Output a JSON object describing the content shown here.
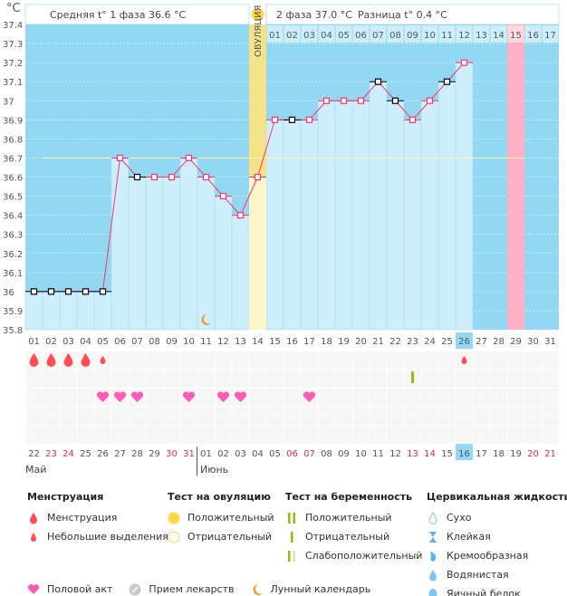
{
  "header": {
    "unit": "°C",
    "phase1": "Средняя t° 1 фаза 36.6 °C",
    "phase2": "2 фаза 37.0 °C",
    "difference": "Разница t° 0.4 °C",
    "ovulation_label": "ОВУЛЯЦИЯ"
  },
  "chart_data": {
    "type": "bar",
    "ylabel": "°C",
    "ylim": [
      35.8,
      37.4
    ],
    "yticks": [
      "37.4",
      "37.3",
      "37.2",
      "37.1",
      "37",
      "36.9",
      "36.8",
      "36.7",
      "36.6",
      "36.5",
      "36.4",
      "36.3",
      "36.2",
      "36.1",
      "36",
      "35.9",
      "35.8"
    ],
    "cover_line": 36.7,
    "cycle_days": [
      "01",
      "02",
      "03",
      "04",
      "05",
      "06",
      "07",
      "08",
      "09",
      "10",
      "11",
      "12",
      "13",
      "14",
      "15",
      "16",
      "17",
      "18",
      "19",
      "20",
      "21",
      "22",
      "23",
      "24",
      "25",
      "26",
      "27",
      "28",
      "29",
      "30",
      "31"
    ],
    "temperatures": [
      36.0,
      36.0,
      36.0,
      36.0,
      36.0,
      36.7,
      36.6,
      36.6,
      36.6,
      36.7,
      36.6,
      36.5,
      36.4,
      36.6,
      36.9,
      36.9,
      36.9,
      37.0,
      37.0,
      37.0,
      37.1,
      37.0,
      36.9,
      37.0,
      37.1,
      37.2
    ],
    "excluded_points": [
      1,
      2,
      3,
      4,
      5,
      7,
      16,
      21,
      22,
      25
    ],
    "ovulation_day": 14,
    "expected_period_day": 29,
    "today_day": 26,
    "phase2_days": [
      "01",
      "02",
      "03",
      "04",
      "05",
      "06",
      "07",
      "08",
      "09",
      "10",
      "11",
      "12",
      "13",
      "14",
      "15",
      "16",
      "17"
    ],
    "colors": {
      "bg": "#93d8f2",
      "bar": "#cdeefb",
      "line": "#ff3366",
      "ovulation": "#f5e38a",
      "period": "#ffb0c4",
      "cover": "#fff7a8"
    }
  },
  "calendar": {
    "dates": [
      "22",
      "23",
      "24",
      "25",
      "26",
      "27",
      "28",
      "29",
      "30",
      "31",
      "01",
      "02",
      "03",
      "04",
      "05",
      "06",
      "07",
      "08",
      "09",
      "10",
      "11",
      "12",
      "13",
      "14",
      "15",
      "16",
      "17",
      "18",
      "19",
      "20",
      "21"
    ],
    "weekend": [
      1,
      2,
      8,
      9,
      15,
      16,
      22,
      23,
      29,
      30
    ],
    "month_may": "Май",
    "month_june": "Июнь"
  },
  "marks": {
    "menstruation": [
      1,
      2,
      3,
      4
    ],
    "spotting": [
      5,
      26
    ],
    "pregnancy_negative": [
      23
    ],
    "intercourse": [
      5,
      6,
      7,
      10,
      12,
      13,
      17
    ],
    "moon": [
      11
    ]
  },
  "legend": {
    "menstruation": {
      "title": "Менструация",
      "items": [
        "Менструация",
        "Небольшие выделения"
      ]
    },
    "ovulation_test": {
      "title": "Тест на овуляцию",
      "items": [
        "Положительный",
        "Отрицательный"
      ]
    },
    "pregnancy_test": {
      "title": "Тест на беременность",
      "items": [
        "Положительный",
        "Отрицательный",
        "Слабоположительный"
      ]
    },
    "cervical": {
      "title": "Цервикальная жидкость",
      "items": [
        "Сухо",
        "Клейкая",
        "Кремообразная",
        "Водянистая",
        "Яичный белок"
      ]
    },
    "other": [
      "Половой акт",
      "Прием лекарств",
      "Лунный календарь"
    ]
  }
}
